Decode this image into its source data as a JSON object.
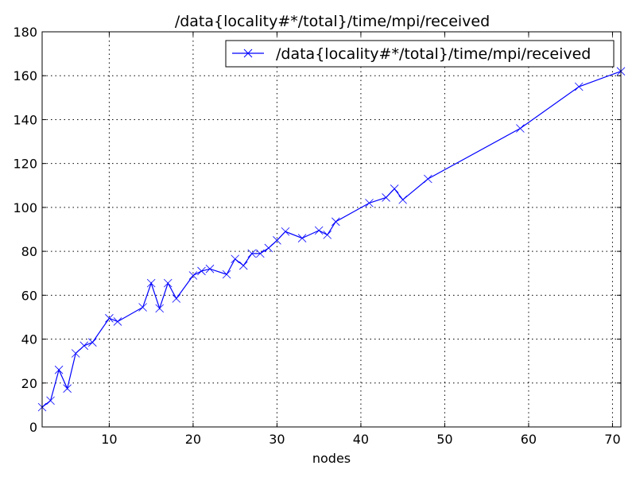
{
  "chart_data": {
    "type": "line",
    "title": "/data{locality#*/total}/time/mpi/received",
    "xlabel": "nodes",
    "ylabel": "",
    "xlim": [
      2,
      71
    ],
    "ylim": [
      0,
      180
    ],
    "xticks": [
      10,
      20,
      30,
      40,
      50,
      60,
      70
    ],
    "yticks": [
      0,
      20,
      40,
      60,
      80,
      100,
      120,
      140,
      160,
      180
    ],
    "grid": true,
    "legend_position": "top-right",
    "series": [
      {
        "name": "/data{locality#*/total}/time/mpi/received",
        "color": "#0000ff",
        "marker": "x",
        "x": [
          2,
          3,
          4,
          5,
          6,
          7,
          8,
          10,
          11,
          14,
          15,
          16,
          17,
          18,
          20,
          21,
          22,
          24,
          25,
          26,
          27,
          28,
          29,
          30,
          31,
          33,
          35,
          36,
          37,
          41,
          43,
          44,
          45,
          48,
          59,
          66,
          71
        ],
        "y": [
          9,
          12,
          26,
          17.5,
          33.5,
          37,
          38.5,
          49.5,
          48,
          54.5,
          65.5,
          54,
          65.5,
          58.5,
          69,
          71,
          72,
          69.5,
          76.5,
          73.5,
          79,
          79,
          81.5,
          85,
          89,
          86,
          89.5,
          87.5,
          93.5,
          102,
          104.5,
          108.5,
          103.5,
          113,
          136,
          155,
          162
        ]
      }
    ]
  }
}
